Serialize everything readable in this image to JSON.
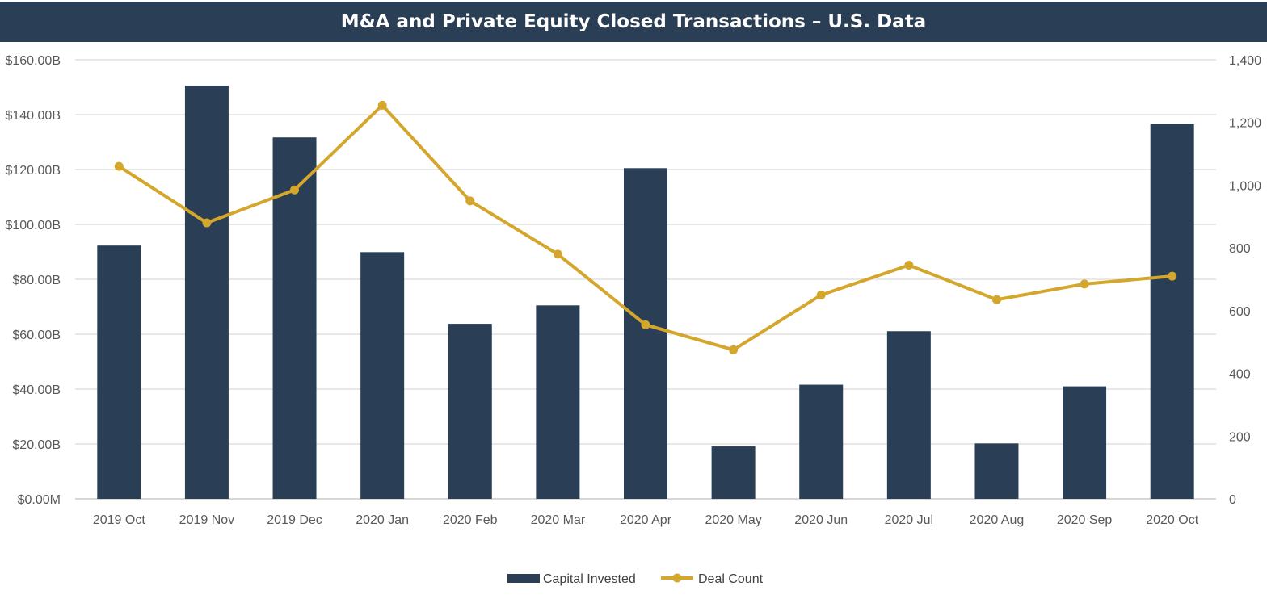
{
  "chart_data": {
    "type": "bar",
    "title": "M&A and Private Equity Closed Transactions – U.S. Data",
    "categories": [
      "2019 Oct",
      "2019 Nov",
      "2019 Dec",
      "2020 Jan",
      "2020 Feb",
      "2020 Mar",
      "2020 Apr",
      "2020 May",
      "2020 Jun",
      "2020 Jul",
      "2020 Aug",
      "2020 Sep",
      "2020 Oct"
    ],
    "series": [
      {
        "name": "Capital Invested",
        "type": "bar",
        "axis": "left",
        "color": "#2a3f55",
        "values": [
          92.3,
          150.6,
          131.7,
          89.9,
          63.8,
          70.5,
          120.5,
          19.1,
          41.6,
          61.1,
          20.2,
          41.0,
          136.6
        ]
      },
      {
        "name": "Deal Count",
        "type": "line",
        "axis": "right",
        "color": "#d4a72c",
        "values": [
          1060,
          880,
          985,
          1255,
          950,
          780,
          555,
          475,
          650,
          745,
          635,
          685,
          710
        ]
      }
    ],
    "y_left": {
      "ylim": [
        0,
        160
      ],
      "ticks": [
        0,
        20,
        40,
        60,
        80,
        100,
        120,
        140,
        160
      ],
      "tick_labels": [
        "$0.00M",
        "$20.00B",
        "$40.00B",
        "$60.00B",
        "$80.00B",
        "$100.00B",
        "$120.00B",
        "$140.00B",
        "$160.00B"
      ]
    },
    "y_right": {
      "ylim": [
        0,
        1400
      ],
      "ticks": [
        0,
        200,
        400,
        600,
        800,
        1000,
        1200,
        1400
      ],
      "tick_labels": [
        "0",
        "200",
        "400",
        "600",
        "800",
        "1,000",
        "1,200",
        "1,400"
      ]
    },
    "grid": true,
    "legend_position": "bottom"
  }
}
